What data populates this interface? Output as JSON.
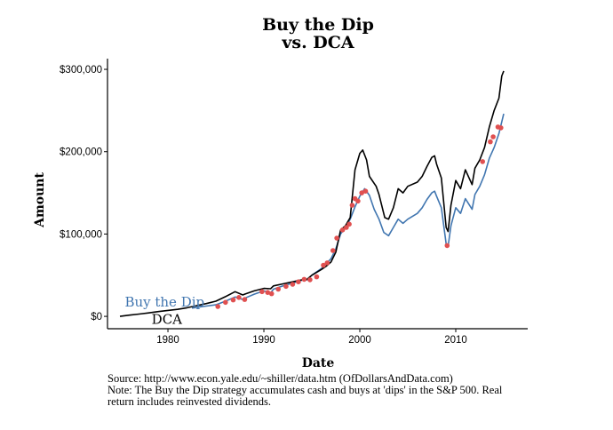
{
  "chart_data": {
    "type": "line",
    "title_line1": "Buy the Dip",
    "title_line2": "vs. DCA",
    "xlabel": "Date",
    "ylabel": "Amount",
    "xlim": [
      1973.7,
      2017.5
    ],
    "ylim": [
      -15000,
      313000
    ],
    "x_ticks": [
      {
        "value": 1980,
        "label": "1980"
      },
      {
        "value": 1990,
        "label": "1990"
      },
      {
        "value": 2000,
        "label": "2000"
      },
      {
        "value": 2010,
        "label": "2010"
      }
    ],
    "y_ticks": [
      {
        "value": 0,
        "label": "$0"
      },
      {
        "value": 100000,
        "label": "$100,000"
      },
      {
        "value": 200000,
        "label": "$200,000"
      },
      {
        "value": 300000,
        "label": "$300,000"
      }
    ],
    "series": [
      {
        "name": "DCA",
        "color": "#000000",
        "points": [
          [
            1975,
            0
          ],
          [
            1976,
            1500
          ],
          [
            1977,
            2800
          ],
          [
            1978,
            4200
          ],
          [
            1979,
            5800
          ],
          [
            1980,
            7200
          ],
          [
            1981,
            8500
          ],
          [
            1982,
            10500
          ],
          [
            1983,
            13000
          ],
          [
            1984,
            15500
          ],
          [
            1985,
            18500
          ],
          [
            1986,
            24000
          ],
          [
            1987,
            30000
          ],
          [
            1987.8,
            26000
          ],
          [
            1988,
            27000
          ],
          [
            1989,
            31000
          ],
          [
            1990,
            34000
          ],
          [
            1990.7,
            33500
          ],
          [
            1991,
            37000
          ],
          [
            1992,
            39500
          ],
          [
            1993,
            42000
          ],
          [
            1994,
            44500
          ],
          [
            1994.5,
            45000
          ],
          [
            1995,
            50000
          ],
          [
            1996,
            57000
          ],
          [
            1996.5,
            61000
          ],
          [
            1997,
            66000
          ],
          [
            1997.5,
            78000
          ],
          [
            1998,
            105000
          ],
          [
            1998.5,
            110000
          ],
          [
            1999,
            120000
          ],
          [
            1999.5,
            178000
          ],
          [
            2000,
            198000
          ],
          [
            2000.3,
            202000
          ],
          [
            2000.7,
            190000
          ],
          [
            2001,
            170000
          ],
          [
            2001.7,
            158000
          ],
          [
            2002,
            148000
          ],
          [
            2002.6,
            120000
          ],
          [
            2003,
            118000
          ],
          [
            2003.5,
            132000
          ],
          [
            2004,
            155000
          ],
          [
            2004.5,
            150000
          ],
          [
            2005,
            158000
          ],
          [
            2006,
            163000
          ],
          [
            2006.5,
            170000
          ],
          [
            2007,
            182000
          ],
          [
            2007.5,
            193000
          ],
          [
            2007.8,
            195000
          ],
          [
            2008,
            185000
          ],
          [
            2008.5,
            168000
          ],
          [
            2009,
            108000
          ],
          [
            2009.2,
            103000
          ],
          [
            2009.5,
            135000
          ],
          [
            2010,
            165000
          ],
          [
            2010.5,
            155000
          ],
          [
            2011,
            178000
          ],
          [
            2011.7,
            160000
          ],
          [
            2012,
            180000
          ],
          [
            2012.5,
            190000
          ],
          [
            2013,
            205000
          ],
          [
            2013.5,
            230000
          ],
          [
            2014,
            250000
          ],
          [
            2014.5,
            265000
          ],
          [
            2014.8,
            292000
          ],
          [
            2015,
            298000
          ]
        ]
      },
      {
        "name": "Buy the Dip",
        "color": "#4176b0",
        "points": [
          [
            1982.5,
            10000
          ],
          [
            1983,
            11000
          ],
          [
            1984,
            12500
          ],
          [
            1985,
            14000
          ],
          [
            1986,
            18500
          ],
          [
            1987,
            23500
          ],
          [
            1987.8,
            20500
          ],
          [
            1988,
            22000
          ],
          [
            1989,
            27000
          ],
          [
            1990,
            31000
          ],
          [
            1990.7,
            28500
          ],
          [
            1991,
            33000
          ],
          [
            1992,
            37000
          ],
          [
            1993,
            40500
          ],
          [
            1994,
            44000
          ],
          [
            1994.5,
            44500
          ],
          [
            1995,
            50000
          ],
          [
            1996,
            58000
          ],
          [
            1996.5,
            64000
          ],
          [
            1997,
            70000
          ],
          [
            1997.5,
            82000
          ],
          [
            1998,
            100000
          ],
          [
            1998.5,
            108000
          ],
          [
            1999,
            118000
          ],
          [
            1999.5,
            133000
          ],
          [
            2000,
            146000
          ],
          [
            2000.5,
            155000
          ],
          [
            2001,
            147000
          ],
          [
            2001.5,
            130000
          ],
          [
            2002,
            118000
          ],
          [
            2002.5,
            102000
          ],
          [
            2003,
            98000
          ],
          [
            2003.5,
            108000
          ],
          [
            2004,
            118000
          ],
          [
            2004.5,
            113000
          ],
          [
            2005,
            118000
          ],
          [
            2006,
            125000
          ],
          [
            2006.5,
            132000
          ],
          [
            2007,
            142000
          ],
          [
            2007.5,
            150000
          ],
          [
            2007.8,
            152000
          ],
          [
            2008,
            146000
          ],
          [
            2008.5,
            132000
          ],
          [
            2009,
            88000
          ],
          [
            2009.2,
            85000
          ],
          [
            2009.5,
            110000
          ],
          [
            2010,
            132000
          ],
          [
            2010.5,
            125000
          ],
          [
            2011,
            143000
          ],
          [
            2011.7,
            130000
          ],
          [
            2012,
            148000
          ],
          [
            2012.5,
            158000
          ],
          [
            2013,
            172000
          ],
          [
            2013.5,
            192000
          ],
          [
            2014,
            205000
          ],
          [
            2014.5,
            222000
          ],
          [
            2015,
            246000
          ]
        ]
      }
    ],
    "dip_points": {
      "color": "#e05050",
      "points": [
        [
          1985.2,
          12000
        ],
        [
          1986,
          17000
        ],
        [
          1986.8,
          20000
        ],
        [
          1987.4,
          23000
        ],
        [
          1988,
          20500
        ],
        [
          1989.8,
          30000
        ],
        [
          1990.4,
          29000
        ],
        [
          1990.8,
          27500
        ],
        [
          1991.5,
          33000
        ],
        [
          1992.3,
          36500
        ],
        [
          1993,
          39000
        ],
        [
          1993.6,
          42000
        ],
        [
          1994.2,
          45000
        ],
        [
          1994.8,
          44500
        ],
        [
          1995.5,
          48000
        ],
        [
          1996.2,
          62000
        ],
        [
          1996.6,
          65000
        ],
        [
          1997.2,
          80000
        ],
        [
          1997.6,
          95000
        ],
        [
          1998.2,
          105000
        ],
        [
          1998.6,
          108000
        ],
        [
          1998.9,
          112000
        ],
        [
          1999.2,
          135000
        ],
        [
          1999.5,
          143000
        ],
        [
          1999.8,
          140000
        ],
        [
          2000.2,
          150000
        ],
        [
          2000.6,
          152000
        ],
        [
          2009.1,
          86000
        ],
        [
          2012.8,
          188000
        ],
        [
          2013.6,
          212000
        ],
        [
          2013.9,
          218000
        ],
        [
          2014.4,
          230000
        ],
        [
          2014.7,
          229000
        ]
      ]
    },
    "annotations": [
      {
        "text": "Buy the Dip",
        "x": 1975.5,
        "y": 12000,
        "color": "#4176b0"
      },
      {
        "text": "DCA",
        "x": 1978.3,
        "y": -9000,
        "color": "#000000"
      }
    ]
  },
  "caption": {
    "source": "Source:  http://www.econ.yale.edu/~shiller/data.htm (OfDollarsAndData.com)",
    "note": "Note: The Buy the Dip strategy accumulates cash and buys at 'dips' in the S&P 500. Real return includes reinvested dividends."
  }
}
